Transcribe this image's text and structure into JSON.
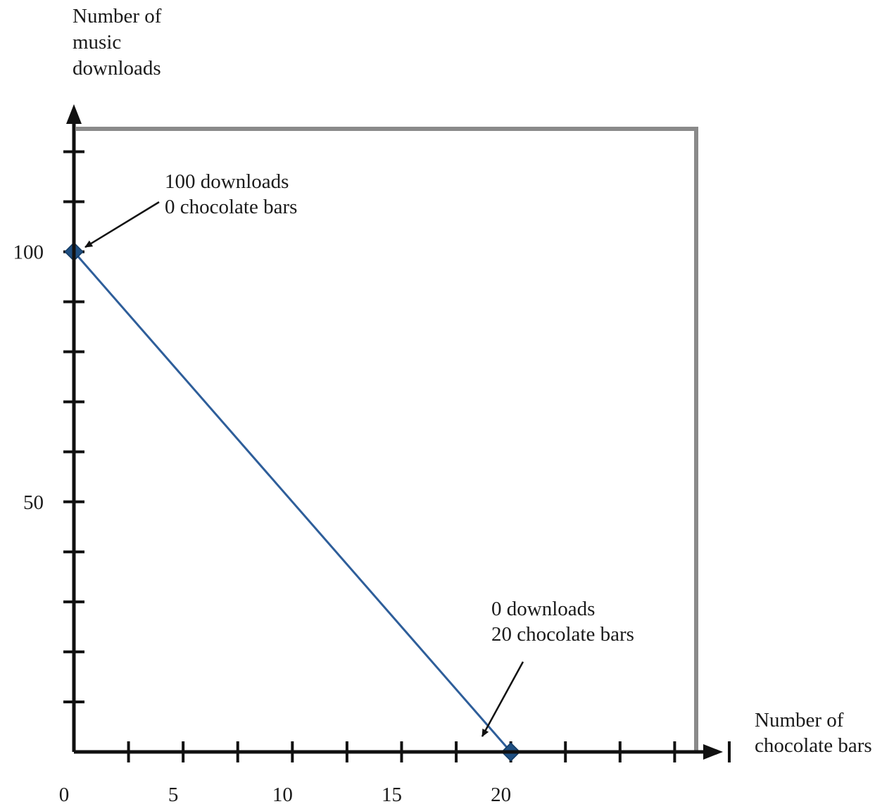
{
  "chart_data": {
    "type": "line",
    "title": "",
    "ylabel_lines": [
      "Number of",
      "music",
      "downloads"
    ],
    "xlabel_lines": [
      "Number of",
      "chocolate bars"
    ],
    "xlim": [
      0,
      31
    ],
    "ylim": [
      0,
      125
    ],
    "x_ticks": [
      0,
      2.5,
      5,
      7.5,
      10,
      12.5,
      15,
      17.5,
      20,
      22.5,
      25,
      27.5,
      30
    ],
    "x_tick_labels": [
      {
        "value": 0,
        "label": "0"
      },
      {
        "value": 5,
        "label": "5"
      },
      {
        "value": 10,
        "label": "10"
      },
      {
        "value": 15,
        "label": "15"
      },
      {
        "value": 20,
        "label": "20"
      }
    ],
    "y_ticks": [
      10,
      20,
      30,
      40,
      50,
      60,
      70,
      80,
      90,
      100,
      110,
      120
    ],
    "y_tick_labels": [
      {
        "value": 50,
        "label": "50"
      },
      {
        "value": 100,
        "label": "100"
      }
    ],
    "series": [
      {
        "x": [
          0,
          20
        ],
        "y": [
          100,
          0
        ],
        "color": "#2e5e9a"
      }
    ],
    "annotations": [
      {
        "x": 0,
        "y": 100,
        "lines": [
          "100 downloads",
          "0 chocolate bars"
        ]
      },
      {
        "x": 20,
        "y": 0,
        "lines": [
          "0 downloads",
          "20 chocolate bars"
        ]
      }
    ],
    "colors": {
      "line": "#2e5e9a",
      "marker": "#1f4f82",
      "axis": "#111111",
      "panel_shadow": "#8a8a8a"
    }
  }
}
